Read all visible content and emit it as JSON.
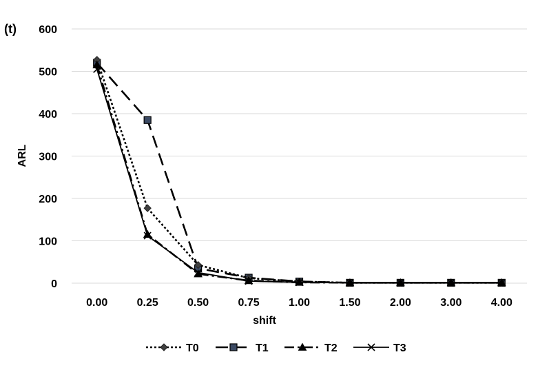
{
  "panel_label": "(t)",
  "chart_data": {
    "type": "line",
    "xlabel": "shift",
    "ylabel": "ARL",
    "categories": [
      "0.00",
      "0.25",
      "0.50",
      "0.75",
      "1.00",
      "1.50",
      "2.00",
      "3.00",
      "4.00"
    ],
    "ylim": [
      0,
      600
    ],
    "yticks": [
      "0",
      "100",
      "200",
      "300",
      "400",
      "500",
      "600"
    ],
    "grid": true,
    "legend_position": "bottom",
    "series": [
      {
        "name": "T0",
        "values": [
          527,
          177,
          43,
          12,
          4,
          1,
          1,
          1,
          1
        ],
        "line": "dotted",
        "marker": "diamond",
        "color": "#000000",
        "marker_color": "#404040"
      },
      {
        "name": "T1",
        "values": [
          520,
          385,
          35,
          13,
          4,
          1,
          1,
          1,
          1
        ],
        "line": "long-dash",
        "marker": "square",
        "color": "#000000",
        "marker_color": "#3b4a63"
      },
      {
        "name": "T2",
        "values": [
          515,
          115,
          22,
          6,
          2,
          1,
          1,
          1,
          1
        ],
        "line": "dash-dot",
        "marker": "triangle",
        "color": "#000000",
        "marker_color": "#000000"
      },
      {
        "name": "T3",
        "values": [
          505,
          112,
          25,
          5,
          2,
          1,
          1,
          1,
          1
        ],
        "line": "solid",
        "marker": "x",
        "color": "#000000",
        "marker_color": "#000000"
      }
    ]
  }
}
